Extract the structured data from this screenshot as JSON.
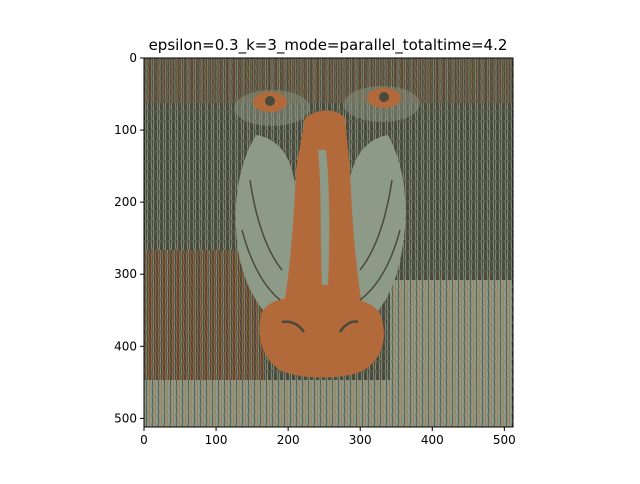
{
  "chart_data": {
    "type": "heatmap",
    "title": "epsilon=0.3_k=3_mode=parallel_totaltime=4.2",
    "xlabel": "",
    "ylabel": "",
    "xlim": [
      0,
      512
    ],
    "ylim": [
      512,
      0
    ],
    "x_ticks": [
      {
        "value": 0,
        "label": "0"
      },
      {
        "value": 100,
        "label": "100"
      },
      {
        "value": 200,
        "label": "200"
      },
      {
        "value": 300,
        "label": "300"
      },
      {
        "value": 400,
        "label": "400"
      },
      {
        "value": 500,
        "label": "500"
      }
    ],
    "y_ticks": [
      {
        "value": 0,
        "label": "0"
      },
      {
        "value": 100,
        "label": "100"
      },
      {
        "value": 200,
        "label": "200"
      },
      {
        "value": 300,
        "label": "300"
      },
      {
        "value": 400,
        "label": "400"
      },
      {
        "value": 500,
        "label": "500"
      }
    ],
    "grid": false,
    "image_content": "quantized-image",
    "cluster_colors": [
      "#4a4a3c",
      "#8e9a88",
      "#b36a3a"
    ]
  }
}
